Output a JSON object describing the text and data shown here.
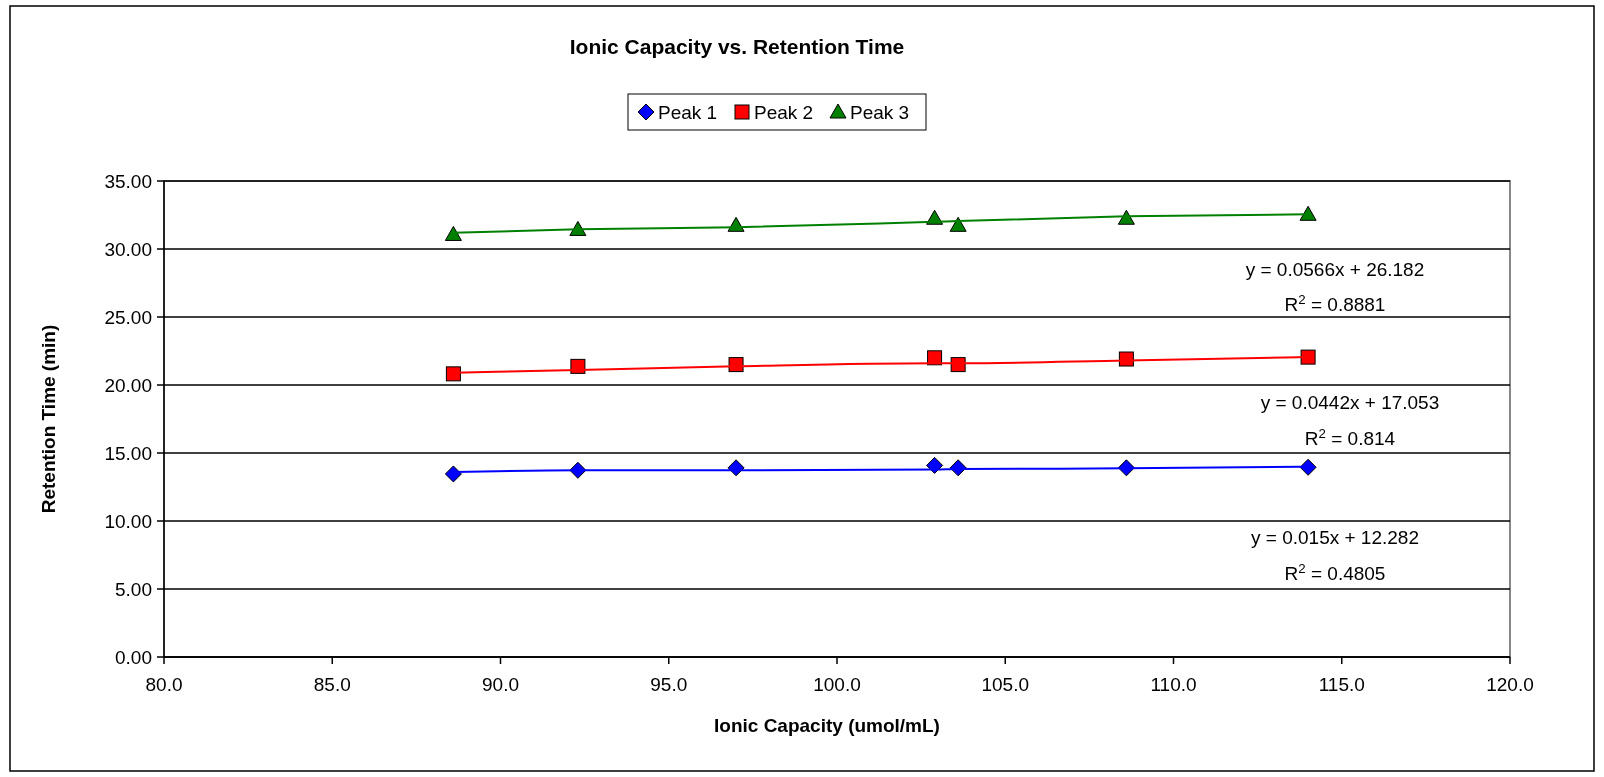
{
  "chart_data": {
    "type": "scatter",
    "title": "Ionic Capacity vs. Retention Time",
    "xlabel": "Ionic Capacity (umol/mL)",
    "ylabel": "Retention Time (min)",
    "xlim": [
      80,
      120
    ],
    "xticks": [
      {
        "value": 80,
        "label": "80.0"
      },
      {
        "value": 85,
        "label": "85.0"
      },
      {
        "value": 90,
        "label": "90.0"
      },
      {
        "value": 95,
        "label": "95.0"
      },
      {
        "value": 100,
        "label": "100.0"
      },
      {
        "value": 105,
        "label": "105.0"
      },
      {
        "value": 110,
        "label": "110.0"
      },
      {
        "value": 115,
        "label": "115.0"
      },
      {
        "value": 120,
        "label": "120.0"
      }
    ],
    "ylim": [
      0,
      35
    ],
    "yticks": [
      {
        "value": 0,
        "label": "0.00"
      },
      {
        "value": 5,
        "label": "5.00"
      },
      {
        "value": 10,
        "label": "10.00"
      },
      {
        "value": 15,
        "label": "15.00"
      },
      {
        "value": 20,
        "label": "20.00"
      },
      {
        "value": 25,
        "label": "25.00"
      },
      {
        "value": 30,
        "label": "30.00"
      },
      {
        "value": 35,
        "label": "35.00"
      }
    ],
    "grid": "y",
    "legend": "top",
    "x": [
      88.6,
      92.3,
      97.0,
      102.9,
      103.6,
      108.6,
      114.0
    ],
    "series": [
      {
        "name": "Peak 1",
        "marker": "diamond",
        "color": "#0000ff",
        "values": [
          13.46,
          13.73,
          13.91,
          14.09,
          13.91,
          13.91,
          13.95
        ]
      },
      {
        "name": "Peak 2",
        "marker": "square",
        "color": "#ff0000",
        "values": [
          20.82,
          21.37,
          21.5,
          22.0,
          21.5,
          21.91,
          22.05
        ]
      },
      {
        "name": "Peak 3",
        "marker": "triangle",
        "color": "#008000",
        "values": [
          31.07,
          31.44,
          31.74,
          32.26,
          31.74,
          32.26,
          32.55
        ]
      },
      {
        "type": "line",
        "marker": "none",
        "color": "#0000ff",
        "values": [
          13.6,
          13.73,
          13.73,
          13.78,
          13.82,
          13.87,
          14.0
        ]
      },
      {
        "type": "line",
        "marker": "none",
        "color": "#ff0000",
        "values": [
          20.9,
          21.1,
          21.37,
          21.6,
          21.6,
          21.8,
          22.05
        ]
      },
      {
        "type": "line",
        "marker": "none",
        "color": "#008000",
        "values": [
          31.2,
          31.45,
          31.6,
          32.0,
          32.05,
          32.4,
          32.55
        ]
      }
    ],
    "annotations": [
      "y = 0.0566x + 26.182",
      "R$^{2}$ = 0.8881",
      "y = 0.0442x + 17.053",
      "R$^{2}$ = 0.814",
      "y = 0.015x + 12.282",
      "R$^{2}$ = 0.4805"
    ]
  }
}
